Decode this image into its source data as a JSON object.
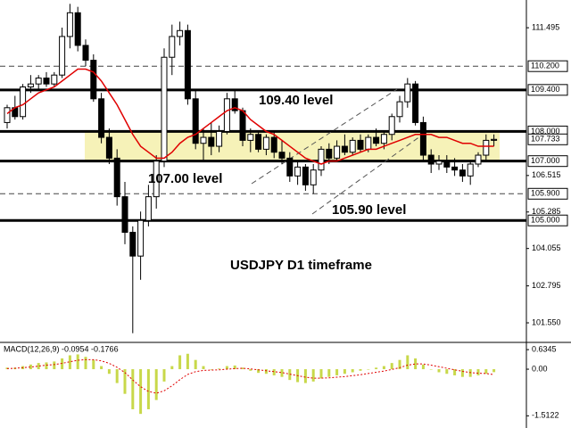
{
  "chart_data": {
    "type": "candlestick",
    "title": "USDJPY D1 timeframe",
    "annotations": [
      "109.40 level",
      "107.00 level",
      "105.90 level"
    ],
    "ylim": [
      100.92,
      112.43
    ],
    "yticks": [
      111.495,
      106.515,
      105.285,
      104.055,
      102.795,
      {
        "value": 101.55,
        "label": "101.550"
      }
    ],
    "levels": [
      {
        "value": 110.2,
        "label": "110.200",
        "style": "dashed"
      },
      {
        "value": 109.4,
        "label": "109.400",
        "style": "solid"
      },
      {
        "value": 108.0,
        "label": "108.000",
        "style": "solid"
      },
      {
        "value": 107.0,
        "label": "107.000",
        "style": "solid"
      },
      {
        "value": 105.9,
        "label": "105.900",
        "style": "dashed"
      },
      {
        "value": 105.0,
        "label": "105.000",
        "style": "solid"
      }
    ],
    "current_price": {
      "value": 107.733,
      "label": "107.733"
    },
    "zone": [
      107.0,
      108.0
    ],
    "zone_color": "#f6f2b8",
    "up_color": "#ffffff",
    "down_color": "#000000",
    "candles": [
      [
        108.3,
        108.9,
        108.1,
        108.8
      ],
      [
        108.8,
        109.2,
        108.4,
        108.5
      ],
      [
        108.5,
        109.6,
        108.4,
        109.5
      ],
      [
        109.5,
        109.9,
        109.3,
        109.6
      ],
      [
        109.6,
        109.9,
        109.4,
        109.8
      ],
      [
        109.8,
        110.0,
        109.5,
        109.6
      ],
      [
        109.6,
        110.0,
        109.5,
        109.9
      ],
      [
        109.9,
        111.5,
        109.8,
        111.2
      ],
      [
        111.2,
        112.3,
        110.8,
        112.0
      ],
      [
        112.0,
        112.2,
        110.7,
        110.9
      ],
      [
        110.9,
        111.1,
        110.2,
        110.4
      ],
      [
        110.4,
        110.6,
        109.0,
        109.1
      ],
      [
        109.1,
        109.3,
        107.6,
        107.8
      ],
      [
        107.8,
        108.1,
        106.9,
        107.1
      ],
      [
        107.1,
        107.4,
        105.5,
        105.8
      ],
      [
        105.8,
        106.3,
        104.2,
        104.6
      ],
      [
        104.6,
        104.8,
        101.2,
        103.8
      ],
      [
        103.8,
        105.3,
        103.0,
        105.0
      ],
      [
        105.0,
        106.2,
        104.8,
        105.8
      ],
      [
        105.8,
        107.2,
        105.4,
        107.0
      ],
      [
        107.0,
        110.8,
        106.8,
        110.5
      ],
      [
        110.5,
        111.6,
        109.9,
        111.2
      ],
      [
        111.2,
        111.7,
        110.9,
        111.4
      ],
      [
        111.4,
        111.6,
        108.9,
        109.1
      ],
      [
        109.1,
        109.4,
        107.4,
        107.6
      ],
      [
        107.6,
        108.1,
        107.0,
        107.8
      ],
      [
        107.8,
        108.3,
        107.2,
        107.5
      ],
      [
        107.5,
        108.2,
        107.3,
        108.0
      ],
      [
        108.0,
        109.3,
        107.9,
        109.1
      ],
      [
        109.1,
        109.4,
        108.6,
        108.7
      ],
      [
        108.7,
        108.8,
        107.5,
        107.7
      ],
      [
        107.7,
        108.1,
        107.3,
        107.9
      ],
      [
        107.9,
        108.0,
        107.3,
        107.4
      ],
      [
        107.4,
        107.9,
        107.2,
        107.8
      ],
      [
        107.8,
        108.0,
        107.1,
        107.3
      ],
      [
        107.3,
        107.7,
        106.9,
        107.1
      ],
      [
        107.1,
        107.3,
        106.3,
        106.5
      ],
      [
        106.5,
        107.0,
        106.2,
        106.8
      ],
      [
        106.8,
        106.9,
        106.0,
        106.2
      ],
      [
        106.2,
        106.9,
        105.9,
        106.7
      ],
      [
        106.7,
        107.5,
        106.5,
        107.4
      ],
      [
        107.4,
        107.6,
        106.9,
        107.1
      ],
      [
        107.1,
        107.7,
        107.0,
        107.5
      ],
      [
        107.5,
        107.9,
        107.2,
        107.3
      ],
      [
        107.3,
        107.8,
        107.2,
        107.7
      ],
      [
        107.7,
        107.9,
        107.3,
        107.4
      ],
      [
        107.4,
        107.9,
        107.3,
        107.8
      ],
      [
        107.8,
        108.1,
        107.5,
        107.6
      ],
      [
        107.6,
        108.0,
        107.4,
        107.9
      ],
      [
        107.9,
        108.6,
        107.7,
        108.5
      ],
      [
        108.5,
        109.2,
        108.3,
        109.0
      ],
      [
        109.0,
        109.8,
        108.8,
        109.6
      ],
      [
        109.6,
        109.7,
        108.2,
        108.3
      ],
      [
        108.3,
        108.5,
        107.0,
        107.2
      ],
      [
        107.2,
        107.4,
        106.6,
        106.9
      ],
      [
        106.9,
        107.2,
        106.7,
        107.0
      ],
      [
        107.0,
        107.2,
        106.6,
        106.8
      ],
      [
        106.8,
        107.1,
        106.5,
        106.7
      ],
      [
        106.7,
        106.9,
        106.3,
        106.5
      ],
      [
        106.5,
        107.0,
        106.2,
        106.9
      ],
      [
        106.9,
        107.3,
        106.8,
        107.2
      ],
      [
        107.2,
        107.9,
        107.0,
        107.7
      ],
      [
        107.7,
        107.9,
        107.5,
        107.733
      ]
    ],
    "ma": {
      "color": "#e00000",
      "values": [
        108.6,
        108.8,
        108.9,
        109.1,
        109.3,
        109.4,
        109.5,
        109.7,
        109.9,
        110.1,
        110.1,
        110.0,
        109.7,
        109.3,
        108.9,
        108.4,
        107.9,
        107.5,
        107.3,
        107.1,
        107.1,
        107.3,
        107.6,
        107.8,
        107.9,
        108.1,
        108.3,
        108.5,
        108.7,
        108.8,
        108.7,
        108.4,
        108.2,
        108.0,
        107.9,
        107.7,
        107.5,
        107.3,
        107.1,
        107.0,
        106.9,
        107.0,
        107.0,
        107.1,
        107.2,
        107.3,
        107.4,
        107.4,
        107.5,
        107.6,
        107.7,
        107.8,
        107.9,
        107.9,
        107.9,
        107.8,
        107.8,
        107.7,
        107.6,
        107.6,
        107.5,
        107.5,
        107.5
      ]
    },
    "macd": {
      "title": "MACD(12,26,9) -0.0954 -0.1766",
      "ylim": [
        -1.85,
        0.84
      ],
      "yticks": [
        0.6345,
        {
          "value": 0,
          "label": "0.00"
        },
        -1.5122
      ],
      "hist_color": "#c8d84a",
      "signal_color": "#e00000",
      "histogram": [
        0.05,
        0.05,
        0.1,
        0.15,
        0.2,
        0.22,
        0.25,
        0.35,
        0.45,
        0.48,
        0.4,
        0.3,
        0.1,
        -0.15,
        -0.45,
        -0.8,
        -1.3,
        -1.45,
        -1.3,
        -1.0,
        -0.4,
        0.1,
        0.45,
        0.5,
        0.3,
        0.1,
        0.0,
        0.02,
        0.1,
        0.12,
        0.05,
        -0.05,
        -0.12,
        -0.15,
        -0.2,
        -0.25,
        -0.35,
        -0.42,
        -0.45,
        -0.4,
        -0.3,
        -0.25,
        -0.2,
        -0.15,
        -0.1,
        -0.05,
        0.0,
        0.05,
        0.1,
        0.2,
        0.3,
        0.45,
        0.35,
        0.15,
        0.0,
        -0.1,
        -0.15,
        -0.2,
        -0.25,
        -0.25,
        -0.2,
        -0.15,
        -0.0954
      ],
      "signal": [
        0.02,
        0.03,
        0.05,
        0.07,
        0.1,
        0.13,
        0.15,
        0.19,
        0.24,
        0.29,
        0.31,
        0.31,
        0.27,
        0.19,
        0.06,
        -0.11,
        -0.35,
        -0.57,
        -0.72,
        -0.78,
        -0.7,
        -0.54,
        -0.34,
        -0.17,
        -0.08,
        -0.04,
        -0.03,
        -0.02,
        0.0,
        0.02,
        0.03,
        0.01,
        -0.02,
        -0.05,
        -0.08,
        -0.11,
        -0.16,
        -0.21,
        -0.26,
        -0.29,
        -0.29,
        -0.28,
        -0.26,
        -0.24,
        -0.21,
        -0.18,
        -0.14,
        -0.1,
        -0.06,
        -0.01,
        0.05,
        0.13,
        0.17,
        0.17,
        0.13,
        0.08,
        0.03,
        -0.02,
        -0.07,
        -0.11,
        -0.13,
        -0.14,
        -0.1766
      ]
    }
  }
}
